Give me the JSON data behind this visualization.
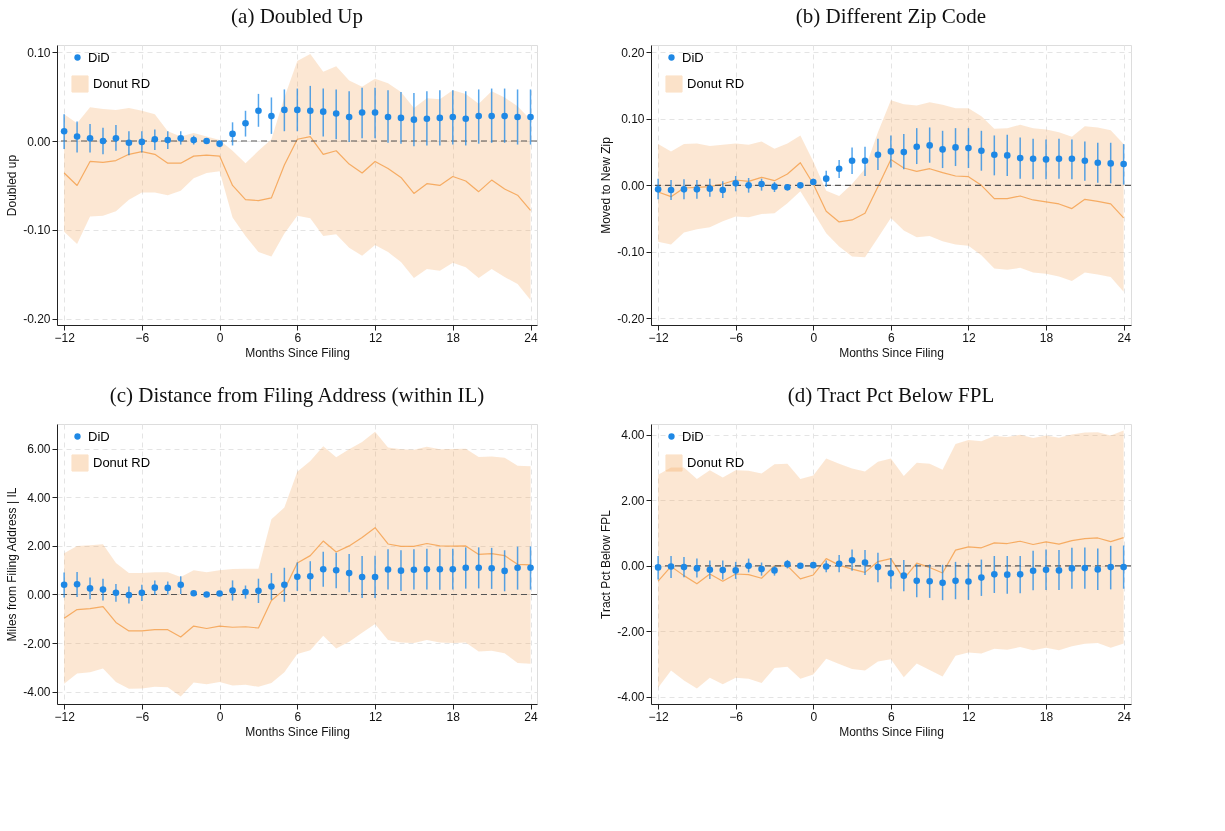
{
  "chart_data": [
    {
      "type": "scatter",
      "title": "(a) Doubled Up",
      "xlabel": "Months Since Filing",
      "ylabel": "Doubled up",
      "x": [
        -12,
        -11,
        -10,
        -9,
        -8,
        -7,
        -6,
        -5,
        -4,
        -3,
        -2,
        -1,
        0,
        1,
        2,
        3,
        4,
        5,
        6,
        7,
        8,
        9,
        10,
        11,
        12,
        13,
        14,
        15,
        16,
        17,
        18,
        19,
        20,
        21,
        22,
        23,
        24
      ],
      "xlim": [
        -12.55,
        24.5
      ],
      "xticks": [
        -12,
        -6,
        0,
        6,
        12,
        18,
        24
      ],
      "ylim": [
        -0.207,
        0.108
      ],
      "yticks": [
        {
          "value": -0.2,
          "label": "-0.20"
        },
        {
          "value": -0.1,
          "label": "-0.10"
        },
        {
          "value": 0,
          "label": "0.00"
        },
        {
          "value": 0.1,
          "label": "0.10"
        }
      ],
      "grid": true,
      "legend": "top left",
      "marker": "circle",
      "ref_lines": [
        {
          "axis": "y",
          "value": 0,
          "label": null,
          "color": "#555555",
          "line_style": "dashed"
        }
      ],
      "series": [
        {
          "name": "Donut RD",
          "type": "line",
          "marker": "none",
          "color": "#f5a14f",
          "values": [
            -0.036,
            -0.05,
            -0.023,
            -0.024,
            -0.022,
            -0.015,
            -0.012,
            -0.015,
            -0.025,
            -0.025,
            -0.017,
            -0.016,
            -0.017,
            -0.05,
            -0.066,
            -0.067,
            -0.064,
            -0.027,
            0.002,
            0.005,
            -0.015,
            -0.011,
            -0.026,
            -0.036,
            -0.023,
            -0.031,
            -0.041,
            -0.059,
            -0.048,
            -0.05,
            -0.04,
            -0.045,
            -0.057,
            -0.044,
            -0.054,
            -0.061,
            -0.078
          ],
          "lower": [
            -0.102,
            -0.116,
            -0.085,
            -0.084,
            -0.079,
            -0.066,
            -0.058,
            -0.058,
            -0.061,
            -0.056,
            -0.042,
            -0.036,
            -0.034,
            -0.086,
            -0.107,
            -0.125,
            -0.13,
            -0.104,
            -0.084,
            -0.087,
            -0.107,
            -0.105,
            -0.12,
            -0.129,
            -0.117,
            -0.125,
            -0.136,
            -0.154,
            -0.144,
            -0.146,
            -0.137,
            -0.142,
            -0.154,
            -0.144,
            -0.153,
            -0.161,
            -0.179
          ],
          "upper": [
            0.03,
            0.02,
            0.038,
            0.036,
            0.035,
            0.037,
            0.034,
            0.03,
            0.011,
            0.005,
            0.009,
            0.005,
            0.001,
            -0.011,
            -0.025,
            -0.011,
            0.002,
            0.049,
            0.09,
            0.098,
            0.078,
            0.084,
            0.068,
            0.061,
            0.07,
            0.065,
            0.055,
            0.037,
            0.048,
            0.047,
            0.057,
            0.053,
            0.042,
            0.056,
            0.049,
            0.039,
            0.024
          ]
        },
        {
          "name": "DiD",
          "type": "scatter",
          "color": "#1e88e5",
          "values": [
            0.011,
            0.005,
            0.003,
            0.0,
            0.003,
            -0.002,
            -0.001,
            0.002,
            0.001,
            0.003,
            0.001,
            0.0,
            -0.003,
            0.008,
            0.02,
            0.034,
            0.028,
            0.035,
            0.035,
            0.034,
            0.033,
            0.031,
            0.027,
            0.032,
            0.032,
            0.027,
            0.026,
            0.024,
            0.025,
            0.026,
            0.027,
            0.025,
            0.028,
            0.028,
            0.028,
            0.027,
            0.027
          ],
          "errors": [
            [
              -0.009,
              0.03
            ],
            [
              -0.013,
              0.022
            ],
            [
              -0.013,
              0.019
            ],
            [
              -0.015,
              0.015
            ],
            [
              -0.011,
              0.018
            ],
            [
              -0.016,
              0.011
            ],
            [
              -0.013,
              0.011
            ],
            [
              -0.01,
              0.013
            ],
            [
              -0.009,
              0.011
            ],
            [
              -0.004,
              0.011
            ],
            [
              -0.004,
              0.006
            ],
            null,
            [
              -0.007,
              0.0
            ],
            [
              -0.005,
              0.021
            ],
            [
              0.005,
              0.034
            ],
            [
              0.016,
              0.053
            ],
            [
              0.008,
              0.049
            ],
            [
              0.011,
              0.058
            ],
            [
              0.011,
              0.059
            ],
            [
              0.007,
              0.062
            ],
            [
              0.005,
              0.059
            ],
            [
              0.002,
              0.058
            ],
            [
              -0.001,
              0.056
            ],
            [
              0.003,
              0.06
            ],
            [
              0.003,
              0.06
            ],
            [
              -0.002,
              0.057
            ],
            [
              -0.003,
              0.055
            ],
            [
              -0.006,
              0.054
            ],
            [
              -0.005,
              0.056
            ],
            [
              -0.005,
              0.057
            ],
            [
              -0.004,
              0.057
            ],
            [
              -0.005,
              0.056
            ],
            [
              -0.003,
              0.058
            ],
            [
              -0.002,
              0.059
            ],
            [
              -0.002,
              0.059
            ],
            [
              -0.004,
              0.058
            ],
            [
              -0.004,
              0.058
            ]
          ]
        }
      ]
    },
    {
      "type": "scatter",
      "title": "(b) Different Zip Code",
      "xlabel": "Months Since Filing",
      "ylabel": "Moved to New Zip",
      "x": [
        -12,
        -11,
        -10,
        -9,
        -8,
        -7,
        -6,
        -5,
        -4,
        -3,
        -2,
        -1,
        0,
        1,
        2,
        3,
        4,
        5,
        6,
        7,
        8,
        9,
        10,
        11,
        12,
        13,
        14,
        15,
        16,
        17,
        18,
        19,
        20,
        21,
        22,
        23,
        24
      ],
      "xlim": [
        -12.55,
        24.57
      ],
      "xticks": [
        -12,
        -6,
        0,
        6,
        12,
        18,
        24
      ],
      "ylim": [
        -0.21,
        0.211
      ],
      "yticks": [
        {
          "value": -0.2,
          "label": "-0.20"
        },
        {
          "value": -0.1,
          "label": "-0.10"
        },
        {
          "value": 0,
          "label": "0.00"
        },
        {
          "value": 0.1,
          "label": "0.10"
        },
        {
          "value": 0.2,
          "label": "0.20"
        }
      ],
      "grid": true,
      "legend": "top left",
      "marker": "circle",
      "ref_lines": [
        {
          "axis": "y",
          "value": 0,
          "label": null,
          "color": "#555555",
          "line_style": "dashed"
        }
      ],
      "series": [
        {
          "name": "Donut RD",
          "type": "line",
          "marker": "none",
          "color": "#f5a14f",
          "values": [
            -0.01,
            -0.017,
            -0.004,
            -0.003,
            -0.002,
            0.002,
            0.008,
            0.006,
            0.012,
            0.007,
            0.017,
            0.034,
            0.002,
            -0.039,
            -0.055,
            -0.052,
            -0.042,
            -0.002,
            0.039,
            0.026,
            0.021,
            0.025,
            0.019,
            0.014,
            0.013,
            0.0,
            -0.02,
            -0.02,
            -0.016,
            -0.022,
            -0.025,
            -0.028,
            -0.035,
            -0.021,
            -0.024,
            -0.028,
            -0.049
          ],
          "lower": [
            -0.085,
            -0.089,
            -0.071,
            -0.066,
            -0.063,
            -0.054,
            -0.047,
            -0.048,
            -0.043,
            -0.042,
            -0.027,
            -0.009,
            -0.04,
            -0.072,
            -0.092,
            -0.107,
            -0.108,
            -0.079,
            -0.049,
            -0.068,
            -0.078,
            -0.076,
            -0.084,
            -0.089,
            -0.091,
            -0.105,
            -0.125,
            -0.127,
            -0.124,
            -0.131,
            -0.133,
            -0.137,
            -0.144,
            -0.131,
            -0.134,
            -0.138,
            -0.16
          ],
          "upper": [
            0.062,
            0.051,
            0.062,
            0.063,
            0.059,
            0.061,
            0.063,
            0.061,
            0.066,
            0.055,
            0.063,
            0.075,
            0.036,
            -0.008,
            -0.016,
            0.002,
            0.025,
            0.08,
            0.128,
            0.122,
            0.12,
            0.125,
            0.121,
            0.116,
            0.116,
            0.104,
            0.085,
            0.086,
            0.091,
            0.086,
            0.084,
            0.08,
            0.073,
            0.089,
            0.087,
            0.083,
            0.062
          ]
        },
        {
          "name": "DiD",
          "type": "scatter",
          "color": "#1e88e5",
          "values": [
            -0.006,
            -0.007,
            -0.006,
            -0.006,
            -0.005,
            -0.007,
            0.003,
            0.0,
            0.002,
            -0.002,
            -0.003,
            0.0,
            0.005,
            0.01,
            0.025,
            0.037,
            0.037,
            0.046,
            0.051,
            0.05,
            0.058,
            0.06,
            0.054,
            0.057,
            0.056,
            0.052,
            0.046,
            0.045,
            0.041,
            0.04,
            0.039,
            0.04,
            0.04,
            0.037,
            0.034,
            0.033,
            0.032
          ],
          "errors": [
            [
              -0.021,
              0.01
            ],
            [
              -0.022,
              0.008
            ],
            [
              -0.021,
              0.009
            ],
            [
              -0.02,
              0.008
            ],
            [
              -0.017,
              0.01
            ],
            [
              -0.019,
              0.006
            ],
            [
              -0.009,
              0.014
            ],
            [
              -0.011,
              0.011
            ],
            [
              -0.008,
              0.01
            ],
            [
              -0.01,
              0.005
            ],
            [
              -0.007,
              0.002
            ],
            null,
            [
              0.001,
              0.01
            ],
            [
              -0.002,
              0.022
            ],
            [
              0.011,
              0.038
            ],
            [
              0.017,
              0.057
            ],
            [
              0.014,
              0.058
            ],
            [
              0.023,
              0.07
            ],
            [
              0.027,
              0.075
            ],
            [
              0.024,
              0.077
            ],
            [
              0.032,
              0.086
            ],
            [
              0.034,
              0.087
            ],
            [
              0.026,
              0.082
            ],
            [
              0.029,
              0.086
            ],
            [
              0.026,
              0.086
            ],
            [
              0.022,
              0.082
            ],
            [
              0.015,
              0.075
            ],
            [
              0.014,
              0.076
            ],
            [
              0.01,
              0.072
            ],
            [
              0.009,
              0.07
            ],
            [
              0.009,
              0.069
            ],
            [
              0.01,
              0.07
            ],
            [
              0.009,
              0.069
            ],
            [
              0.007,
              0.066
            ],
            [
              0.004,
              0.064
            ],
            [
              0.003,
              0.064
            ],
            [
              0.001,
              0.062
            ]
          ]
        }
      ]
    },
    {
      "type": "scatter",
      "title": "(c) Distance from Filing Address (within IL)",
      "xlabel": "Months Since Filing",
      "ylabel": "Miles from Filing Address | IL",
      "x": [
        -12,
        -11,
        -10,
        -9,
        -8,
        -7,
        -6,
        -5,
        -4,
        -3,
        -2,
        -1,
        0,
        1,
        2,
        3,
        4,
        5,
        6,
        7,
        8,
        9,
        10,
        11,
        12,
        13,
        14,
        15,
        16,
        17,
        18,
        19,
        20,
        21,
        22,
        23,
        24
      ],
      "xlim": [
        -12.55,
        24.5
      ],
      "xticks": [
        -12,
        -6,
        0,
        6,
        12,
        18,
        24
      ],
      "ylim": [
        -4.51,
        7.02
      ],
      "yticks": [
        {
          "value": -4,
          "label": "-4.00"
        },
        {
          "value": -2,
          "label": "-2.00"
        },
        {
          "value": 0,
          "label": "0.00"
        },
        {
          "value": 2,
          "label": "2.00"
        },
        {
          "value": 4,
          "label": "4.00"
        },
        {
          "value": 6,
          "label": "6.00"
        }
      ],
      "grid": true,
      "legend": "top left",
      "marker": "circle",
      "ref_lines": [
        {
          "axis": "y",
          "value": 0,
          "label": null,
          "color": "#555555",
          "line_style": "dashed"
        }
      ],
      "series": [
        {
          "name": "Donut RD",
          "type": "line",
          "marker": "none",
          "color": "#f5a14f",
          "values": [
            -0.98,
            -0.62,
            -0.58,
            -0.5,
            -1.15,
            -1.5,
            -1.5,
            -1.45,
            -1.45,
            -1.75,
            -1.3,
            -1.4,
            -1.3,
            -1.35,
            -1.33,
            -1.38,
            -0.25,
            0.2,
            1.3,
            1.6,
            2.2,
            1.75,
            2.0,
            2.35,
            2.75,
            2.08,
            1.98,
            1.98,
            2.1,
            2.0,
            1.99,
            2.0,
            1.65,
            1.68,
            1.6,
            1.24,
            1.22
          ],
          "lower": [
            -3.68,
            -3.25,
            -3.2,
            -3.05,
            -3.6,
            -3.88,
            -3.87,
            -3.8,
            -3.82,
            -4.2,
            -3.62,
            -3.7,
            -3.6,
            -3.75,
            -3.72,
            -3.8,
            -3.65,
            -3.2,
            -2.45,
            -2.3,
            -1.7,
            -2.22,
            -1.95,
            -1.58,
            -1.22,
            -1.87,
            -1.98,
            -2.0,
            -1.87,
            -1.98,
            -2.0,
            -1.98,
            -2.35,
            -2.32,
            -2.42,
            -2.82,
            -2.85
          ],
          "upper": [
            1.7,
            2.0,
            2.03,
            2.07,
            1.3,
            0.88,
            0.88,
            0.92,
            0.92,
            0.72,
            1.0,
            0.92,
            1.0,
            1.05,
            1.06,
            1.06,
            3.1,
            3.58,
            5.05,
            5.5,
            6.1,
            5.65,
            5.98,
            6.28,
            6.7,
            6.05,
            5.98,
            5.96,
            6.08,
            5.98,
            5.99,
            6.0,
            5.66,
            5.68,
            5.63,
            5.3,
            5.28
          ]
        },
        {
          "name": "DiD",
          "type": "scatter",
          "color": "#1e88e5",
          "values": [
            0.4,
            0.42,
            0.25,
            0.2,
            0.07,
            -0.02,
            0.07,
            0.28,
            0.27,
            0.4,
            0.05,
            0.0,
            0.04,
            0.16,
            0.1,
            0.15,
            0.33,
            0.4,
            0.73,
            0.75,
            1.04,
            1.0,
            0.88,
            0.72,
            0.72,
            1.03,
            0.98,
            1.02,
            1.04,
            1.04,
            1.04,
            1.1,
            1.1,
            1.08,
            0.97,
            1.1,
            1.1
          ],
          "errors": [
            [
              -0.12,
              0.9
            ],
            [
              -0.1,
              0.93
            ],
            [
              -0.2,
              0.7
            ],
            [
              -0.25,
              0.65
            ],
            [
              -0.3,
              0.43
            ],
            [
              -0.37,
              0.33
            ],
            [
              -0.27,
              0.4
            ],
            [
              -0.02,
              0.58
            ],
            [
              0.0,
              0.53
            ],
            [
              0.02,
              0.75
            ],
            [
              -0.03,
              0.12
            ],
            null,
            [
              -0.02,
              0.1
            ],
            [
              -0.25,
              0.58
            ],
            [
              -0.17,
              0.37
            ],
            [
              -0.35,
              0.65
            ],
            [
              -0.22,
              0.88
            ],
            [
              -0.3,
              1.1
            ],
            [
              0.15,
              1.32
            ],
            [
              0.13,
              1.37
            ],
            [
              0.32,
              1.76
            ],
            [
              0.26,
              1.72
            ],
            [
              0.09,
              1.67
            ],
            [
              -0.15,
              1.58
            ],
            [
              -0.15,
              1.59
            ],
            [
              0.2,
              1.86
            ],
            [
              0.14,
              1.82
            ],
            [
              0.2,
              1.86
            ],
            [
              0.2,
              1.88
            ],
            [
              0.19,
              1.88
            ],
            [
              0.2,
              1.88
            ],
            [
              0.24,
              1.94
            ],
            [
              0.25,
              1.94
            ],
            [
              0.23,
              1.92
            ],
            [
              0.13,
              1.82
            ],
            [
              0.2,
              1.97
            ],
            [
              0.2,
              1.98
            ]
          ]
        }
      ]
    },
    {
      "type": "scatter",
      "title": "(d) Tract Pct Below FPL",
      "xlabel": "Months Since Filing",
      "ylabel": "Tract Pct Below FPL",
      "x": [
        -12,
        -11,
        -10,
        -9,
        -8,
        -7,
        -6,
        -5,
        -4,
        -3,
        -2,
        -1,
        0,
        1,
        2,
        3,
        4,
        5,
        6,
        7,
        8,
        9,
        10,
        11,
        12,
        13,
        14,
        15,
        16,
        17,
        18,
        19,
        20,
        21,
        22,
        23,
        24
      ],
      "xlim": [
        -12.55,
        24.57
      ],
      "xticks": [
        -12,
        -6,
        0,
        6,
        12,
        18,
        24
      ],
      "ylim": [
        -4.22,
        4.33
      ],
      "yticks": [
        {
          "value": -4,
          "label": "-4.00"
        },
        {
          "value": -2,
          "label": "-2.00"
        },
        {
          "value": 0,
          "label": "0.00"
        },
        {
          "value": 2,
          "label": "2.00"
        },
        {
          "value": 4,
          "label": "4.00"
        }
      ],
      "grid": true,
      "legend": "top left",
      "marker": "circle",
      "ref_lines": [
        {
          "axis": "y",
          "value": 0,
          "label": null,
          "color": "#555555",
          "line_style": "dashed"
        }
      ],
      "series": [
        {
          "name": "Donut RD",
          "type": "line",
          "marker": "none",
          "color": "#f5a14f",
          "values": [
            -0.47,
            -0.02,
            -0.3,
            -0.55,
            -0.25,
            -0.47,
            -0.25,
            -0.27,
            -0.38,
            0.0,
            0.0,
            -0.4,
            -0.28,
            0.22,
            0.02,
            -0.1,
            -0.2,
            0.13,
            0.22,
            -0.4,
            0.08,
            -0.05,
            -0.22,
            0.48,
            0.58,
            0.55,
            0.7,
            0.68,
            0.75,
            0.65,
            0.73,
            0.66,
            0.77,
            0.83,
            0.85,
            0.74,
            0.86
          ],
          "lower": [
            -3.72,
            -3.2,
            -3.5,
            -3.75,
            -3.42,
            -3.62,
            -3.42,
            -3.45,
            -3.58,
            -3.12,
            -3.08,
            -3.45,
            -3.32,
            -2.84,
            -3.0,
            -3.15,
            -3.2,
            -2.92,
            -2.85,
            -3.4,
            -2.98,
            -3.18,
            -3.38,
            -2.75,
            -2.65,
            -2.68,
            -2.53,
            -2.56,
            -2.48,
            -2.58,
            -2.5,
            -2.58,
            -2.46,
            -2.38,
            -2.36,
            -2.5,
            -2.37
          ],
          "upper": [
            2.78,
            3.0,
            3.0,
            2.65,
            2.92,
            2.7,
            2.92,
            2.9,
            2.82,
            3.1,
            3.12,
            2.65,
            2.76,
            3.28,
            3.12,
            2.97,
            2.88,
            3.18,
            3.28,
            2.74,
            3.15,
            3.12,
            2.93,
            3.72,
            3.84,
            3.8,
            3.96,
            3.93,
            4.0,
            3.9,
            3.98,
            3.91,
            4.01,
            4.07,
            4.08,
            3.98,
            4.13
          ]
        },
        {
          "name": "DiD",
          "type": "scatter",
          "color": "#1e88e5",
          "values": [
            -0.05,
            -0.02,
            -0.04,
            -0.08,
            -0.12,
            -0.13,
            -0.14,
            0.0,
            -0.1,
            -0.14,
            0.05,
            0.0,
            0.02,
            -0.02,
            0.06,
            0.17,
            0.1,
            -0.04,
            -0.23,
            -0.3,
            -0.46,
            -0.47,
            -0.52,
            -0.46,
            -0.48,
            -0.36,
            -0.26,
            -0.27,
            -0.26,
            -0.15,
            -0.12,
            -0.14,
            -0.08,
            -0.07,
            -0.11,
            -0.04,
            -0.04
          ],
          "errors": [
            [
              -0.42,
              0.3
            ],
            [
              -0.37,
              0.3
            ],
            [
              -0.35,
              0.27
            ],
            [
              -0.36,
              0.22
            ],
            [
              -0.4,
              0.16
            ],
            [
              -0.42,
              0.16
            ],
            [
              -0.4,
              0.12
            ],
            [
              -0.2,
              0.22
            ],
            [
              -0.3,
              0.1
            ],
            [
              -0.3,
              0.0
            ],
            [
              -0.08,
              0.18
            ],
            null,
            [
              -0.04,
              0.08
            ],
            [
              -0.2,
              0.16
            ],
            [
              -0.2,
              0.33
            ],
            [
              -0.15,
              0.5
            ],
            [
              -0.28,
              0.48
            ],
            [
              -0.5,
              0.4
            ],
            [
              -0.7,
              0.24
            ],
            [
              -0.78,
              0.18
            ],
            [
              -0.96,
              0.05
            ],
            [
              -0.98,
              0.04
            ],
            [
              -1.05,
              0.03
            ],
            [
              -1.02,
              0.12
            ],
            [
              -1.04,
              0.08
            ],
            [
              -0.92,
              0.19
            ],
            [
              -0.83,
              0.3
            ],
            [
              -0.85,
              0.3
            ],
            [
              -0.84,
              0.3
            ],
            [
              -0.75,
              0.46
            ],
            [
              -0.74,
              0.5
            ],
            [
              -0.74,
              0.48
            ],
            [
              -0.7,
              0.55
            ],
            [
              -0.7,
              0.56
            ],
            [
              -0.74,
              0.53
            ],
            [
              -0.72,
              0.61
            ],
            [
              -0.7,
              0.62
            ]
          ]
        }
      ]
    }
  ]
}
